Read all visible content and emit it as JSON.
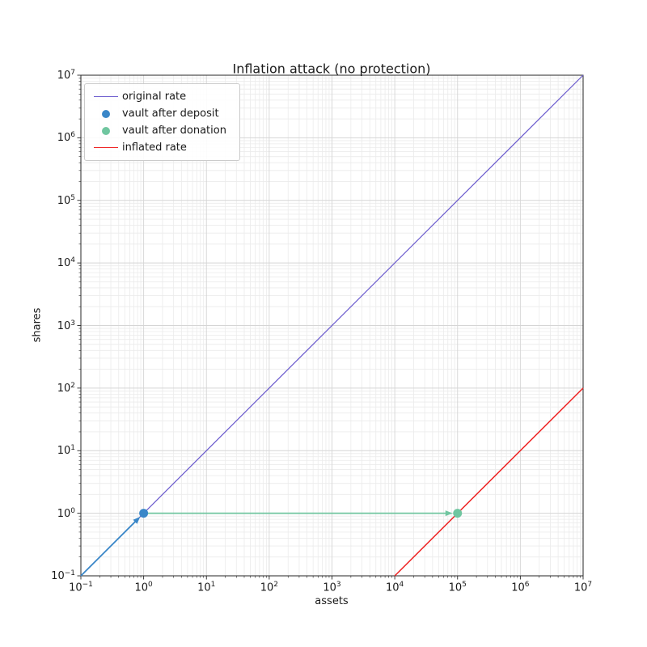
{
  "chart_data": {
    "type": "line",
    "title": "Inflation attack (no protection)",
    "xlabel": "assets",
    "ylabel": "shares",
    "x_scale": "log",
    "y_scale": "log",
    "xlim": [
      0.1,
      10000000
    ],
    "ylim": [
      0.1,
      10000000
    ],
    "x_tick_exponents": [
      -1,
      0,
      1,
      2,
      3,
      4,
      5,
      6,
      7
    ],
    "y_tick_exponents": [
      -1,
      0,
      1,
      2,
      3,
      4,
      5,
      6,
      7
    ],
    "grid": "both",
    "series": [
      {
        "name": "original rate",
        "color": "#6a5acd",
        "width": 1.2,
        "points": [
          [
            0.1,
            0.1
          ],
          [
            10000000,
            10000000
          ]
        ]
      },
      {
        "name": "inflated rate",
        "color": "#ee2222",
        "width": 1.5,
        "points": [
          [
            10000,
            0.1
          ],
          [
            10000000,
            100
          ]
        ]
      }
    ],
    "markers": [
      {
        "name": "vault after deposit",
        "color": "#3a87c8",
        "x": 1,
        "y": 1,
        "radius": 5.5
      },
      {
        "name": "vault after donation",
        "color": "#70c6a0",
        "x": 100000,
        "y": 1,
        "radius": 5.5
      }
    ],
    "arrows": [
      {
        "name": "deposit-arrow",
        "color": "#3a87c8",
        "width": 1.8,
        "from": [
          0.1,
          0.1
        ],
        "to": [
          1,
          1
        ]
      },
      {
        "name": "donation-arrow",
        "color": "#70c6a0",
        "width": 1.8,
        "from": [
          1,
          1
        ],
        "to": [
          100000,
          1
        ]
      }
    ],
    "legend": {
      "position": "upper left",
      "entries": [
        {
          "label": "original rate",
          "marker": "line",
          "color": "#6a5acd"
        },
        {
          "label": "vault after deposit",
          "marker": "dot",
          "color": "#3a87c8"
        },
        {
          "label": "vault after donation",
          "marker": "dot",
          "color": "#70c6a0"
        },
        {
          "label": "inflated rate",
          "marker": "line",
          "color": "#ee2222"
        }
      ]
    },
    "style": {
      "grid_major_color": "#d5d5d5",
      "grid_minor_color": "#ebebeb",
      "spine_color": "#262626",
      "tick_color": "#262626",
      "text_color": "#1a1a1a",
      "background": "#ffffff"
    }
  }
}
